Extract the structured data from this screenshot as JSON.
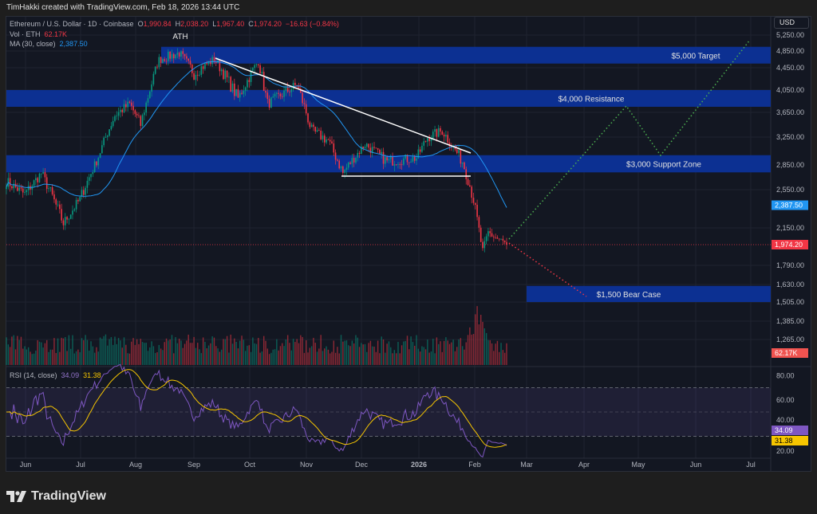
{
  "credit": "TimHakki created with TradingView.com, Feb 18, 2026 13:44 UTC",
  "legend": {
    "symbol": "Ethereum / U.S. Dollar · 1D · Coinbase",
    "o_label": "O",
    "o": "1,990.84",
    "h_label": "H",
    "h": "2,038.20",
    "l_label": "L",
    "l": "1,967.40",
    "c_label": "C",
    "c": "1,974.20",
    "change": "−16.63 (−0.84%)",
    "vol_label": "Vol · ETH",
    "vol": "62.17K",
    "ma_label": "MA (30, close)",
    "ma": "2,387.50",
    "rsi_label": "RSI (14, close)",
    "rsi": "34.09",
    "rsi_ma": "31.38"
  },
  "currency": "USD",
  "annotations": {
    "ath": "ATH",
    "target": "$5,000 Target",
    "resistance": "$4,000 Resistance",
    "support": "$3,000 Support Zone",
    "bear": "$1,500 Bear Case"
  },
  "price_ticks": [
    "5,250.00",
    "4,850.00",
    "4,450.00",
    "4,050.00",
    "3,650.00",
    "3,250.00",
    "2,850.00",
    "2,550.00",
    "2,150.00",
    "1,790.00",
    "1,630.00",
    "1,505.00",
    "1,385.00",
    "1,265.00"
  ],
  "price_badges": {
    "ma": "2,387.50",
    "last": "1,974.20",
    "vol": "62.17K",
    "rsi": "34.09",
    "rsi_ma": "31.38"
  },
  "rsi_ticks": [
    "80.00",
    "60.00",
    "40.00",
    "20.00"
  ],
  "time_ticks": [
    "Jun",
    "Jul",
    "Aug",
    "Sep",
    "Oct",
    "Nov",
    "Dec",
    "2026",
    "Feb",
    "Mar",
    "Apr",
    "May",
    "Jun",
    "Jul"
  ],
  "logo": "TradingView",
  "colors": {
    "up": "#089981",
    "down": "#f23645",
    "ma": "#2196f3",
    "rsi": "#7e57c2",
    "rsi_ma": "#f7c600",
    "zone": "#0c3299"
  },
  "chart_data": {
    "type": "candlestick",
    "symbol": "ETHUSD",
    "interval": "1D",
    "approx_closes": [
      [
        "2025-05-22",
        2650
      ],
      [
        "2025-06-01",
        2500
      ],
      [
        "2025-06-10",
        2750
      ],
      [
        "2025-06-22",
        2200
      ],
      [
        "2025-07-01",
        2450
      ],
      [
        "2025-07-10",
        2900
      ],
      [
        "2025-07-20",
        3600
      ],
      [
        "2025-07-28",
        3800
      ],
      [
        "2025-08-03",
        3450
      ],
      [
        "2025-08-13",
        4650
      ],
      [
        "2025-08-24",
        4800
      ],
      [
        "2025-09-01",
        4350
      ],
      [
        "2025-09-12",
        4650
      ],
      [
        "2025-09-25",
        3900
      ],
      [
        "2025-10-06",
        4600
      ],
      [
        "2025-10-11",
        3800
      ],
      [
        "2025-10-27",
        4150
      ],
      [
        "2025-11-04",
        3350
      ],
      [
        "2025-11-13",
        3200
      ],
      [
        "2025-11-21",
        2750
      ],
      [
        "2025-12-03",
        3150
      ],
      [
        "2025-12-15",
        2900
      ],
      [
        "2025-12-31",
        2950
      ],
      [
        "2026-01-06",
        3250
      ],
      [
        "2026-01-14",
        3350
      ],
      [
        "2026-01-25",
        2900
      ],
      [
        "2026-01-31",
        2450
      ],
      [
        "2026-02-05",
        1900
      ],
      [
        "2026-02-08",
        2100
      ],
      [
        "2026-02-18",
        1974.2
      ]
    ],
    "ma_period": 30,
    "ma_last": 2387.5,
    "rsi_last": 34.09,
    "rsi_ma_last": 31.38,
    "rsi_levels": [
      70,
      50,
      30
    ],
    "zones": [
      {
        "label": "$5,000 Target",
        "low": 4550,
        "high": 4950
      },
      {
        "label": "$4,000 Resistance",
        "low": 3750,
        "high": 4050
      },
      {
        "label": "$3,000 Support Zone",
        "low": 2760,
        "high": 2990
      },
      {
        "label": "$1,500 Bear Case",
        "low": 1505,
        "high": 1620
      }
    ]
  }
}
